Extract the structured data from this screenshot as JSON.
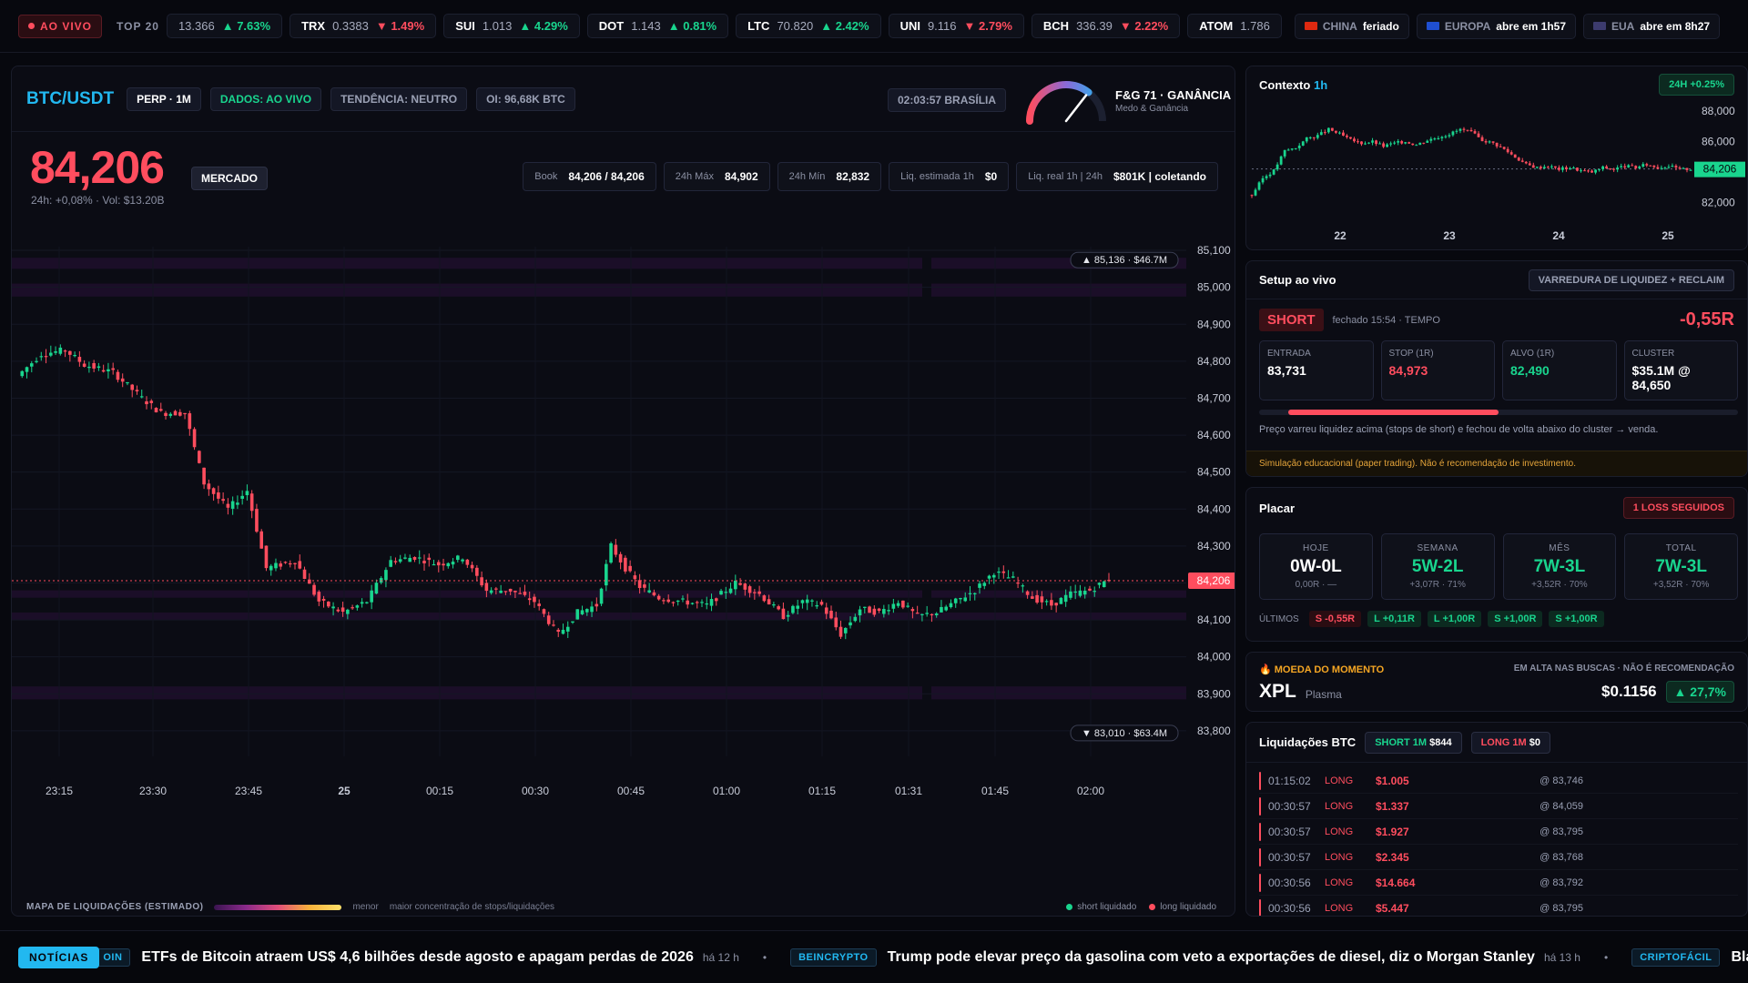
{
  "top": {
    "live": "AO VIVO",
    "top20": "TOP 20",
    "tickers": [
      {
        "s": "",
        "p": "13.366",
        "c": "7.63%",
        "d": "up"
      },
      {
        "s": "TRX",
        "p": "0.3383",
        "c": "1.49%",
        "d": "dn"
      },
      {
        "s": "SUI",
        "p": "1.013",
        "c": "4.29%",
        "d": "up"
      },
      {
        "s": "DOT",
        "p": "1.143",
        "c": "0.81%",
        "d": "up"
      },
      {
        "s": "LTC",
        "p": "70.820",
        "c": "2.42%",
        "d": "up"
      },
      {
        "s": "UNI",
        "p": "9.116",
        "c": "2.79%",
        "d": "dn"
      },
      {
        "s": "BCH",
        "p": "336.39",
        "c": "2.22%",
        "d": "dn"
      },
      {
        "s": "ATOM",
        "p": "1.786",
        "c": "",
        "d": ""
      }
    ],
    "markets": [
      {
        "region": "CHINA",
        "status": "feriado"
      },
      {
        "region": "EUROPA",
        "status": "abre em 1h57"
      },
      {
        "region": "EUA",
        "status": "abre em 8h27"
      }
    ]
  },
  "header": {
    "pair": "BTC/USDT",
    "perp": "PERP · 1M",
    "data": "DADOS: AO VIVO",
    "trend": "TENDÊNCIA: NEUTRO",
    "oi": "OI: 96,68K BTC",
    "clock": "02:03:57 BRASÍLIA",
    "fg_title": "F&G 71 · GANÂNCIA",
    "fg_sub": "Medo & Ganância",
    "fg_value": 71
  },
  "price": {
    "value": "84,206",
    "market_btn": "MERCADO",
    "sub": "24h: +0,08% · Vol: $13.20B"
  },
  "stats": [
    {
      "l": "Book",
      "v": "84,206 / 84,206"
    },
    {
      "l": "24h Máx",
      "v": "84,902"
    },
    {
      "l": "24h Mín",
      "v": "82,832"
    },
    {
      "l": "Liq. estimada 1h",
      "v": "$0"
    },
    {
      "l": "Liq. real 1h | 24h",
      "v": "$801K | coletando"
    }
  ],
  "chart_data": {
    "type": "candlestick",
    "y_ticks": [
      "85,100",
      "85,000",
      "84,900",
      "84,800",
      "84,700",
      "84,600",
      "84,500",
      "84,400",
      "84,300",
      "84,200",
      "84,100",
      "84,000",
      "83,900",
      "83,800"
    ],
    "x_ticks": [
      "23:15",
      "23:30",
      "23:45",
      "25",
      "00:15",
      "00:30",
      "00:45",
      "01:00",
      "01:15",
      "01:31",
      "01:45",
      "02:00"
    ],
    "ylim": [
      83780,
      85110
    ],
    "last_price": 84206,
    "last_label": "84,206",
    "top_marker": "85,136 · $46.7M",
    "bottom_marker": "83,010 · $63.4M",
    "close_path": [
      [
        0,
        84760
      ],
      [
        5,
        84820
      ],
      [
        10,
        84830
      ],
      [
        14,
        84790
      ],
      [
        20,
        84770
      ],
      [
        26,
        84700
      ],
      [
        30,
        84660
      ],
      [
        35,
        84660
      ],
      [
        39,
        84470
      ],
      [
        44,
        84400
      ],
      [
        48,
        84450
      ],
      [
        52,
        84240
      ],
      [
        58,
        84260
      ],
      [
        63,
        84150
      ],
      [
        68,
        84120
      ],
      [
        73,
        84150
      ],
      [
        78,
        84260
      ],
      [
        83,
        84270
      ],
      [
        88,
        84250
      ],
      [
        93,
        84270
      ],
      [
        98,
        84180
      ],
      [
        103,
        84180
      ],
      [
        108,
        84150
      ],
      [
        113,
        84060
      ],
      [
        117,
        84120
      ],
      [
        121,
        84140
      ],
      [
        124,
        84300
      ],
      [
        127,
        84240
      ],
      [
        130,
        84190
      ],
      [
        134,
        84160
      ],
      [
        139,
        84150
      ],
      [
        144,
        84140
      ],
      [
        150,
        84200
      ],
      [
        155,
        84170
      ],
      [
        160,
        84110
      ],
      [
        164,
        84150
      ],
      [
        168,
        84140
      ],
      [
        172,
        84060
      ],
      [
        176,
        84130
      ],
      [
        180,
        84120
      ],
      [
        184,
        84150
      ],
      [
        188,
        84110
      ],
      [
        192,
        84120
      ],
      [
        196,
        84150
      ],
      [
        200,
        84180
      ],
      [
        204,
        84230
      ],
      [
        208,
        84210
      ],
      [
        212,
        84160
      ],
      [
        216,
        84140
      ],
      [
        220,
        84170
      ],
      [
        224,
        84180
      ],
      [
        228,
        84210
      ]
    ]
  },
  "map": {
    "label": "MAPA DE LIQUIDAÇÕES (ESTIMADO)",
    "low": "menor",
    "high": "maior concentração de stops/liquidações",
    "short_liq": "short liquidado",
    "long_liq": "long liquidado"
  },
  "context": {
    "title": "Contexto",
    "tf": "1h",
    "pill": "24H +0.25%",
    "y_ticks": [
      "88,000",
      "86,000",
      "84,206",
      "82,000"
    ],
    "x_ticks": [
      "22",
      "23",
      "24",
      "25"
    ],
    "series": [
      [
        0,
        82500
      ],
      [
        2,
        83600
      ],
      [
        4,
        84100
      ],
      [
        6,
        85400
      ],
      [
        8,
        85600
      ],
      [
        10,
        86200
      ],
      [
        12,
        86400
      ],
      [
        14,
        86800
      ],
      [
        16,
        86500
      ],
      [
        18,
        86100
      ],
      [
        20,
        85900
      ],
      [
        22,
        86000
      ],
      [
        24,
        85700
      ],
      [
        26,
        85900
      ],
      [
        28,
        86000
      ],
      [
        30,
        85800
      ],
      [
        32,
        86100
      ],
      [
        34,
        86300
      ],
      [
        36,
        86500
      ],
      [
        38,
        86800
      ],
      [
        40,
        86600
      ],
      [
        42,
        86100
      ],
      [
        44,
        85900
      ],
      [
        46,
        85500
      ],
      [
        48,
        85000
      ],
      [
        50,
        84500
      ],
      [
        52,
        84300
      ],
      [
        54,
        84400
      ],
      [
        56,
        84200
      ],
      [
        58,
        84300
      ],
      [
        60,
        84100
      ],
      [
        62,
        84000
      ],
      [
        64,
        84300
      ],
      [
        66,
        84200
      ],
      [
        68,
        84400
      ],
      [
        70,
        84300
      ],
      [
        72,
        84500
      ],
      [
        74,
        84300
      ],
      [
        76,
        84400
      ],
      [
        78,
        84200
      ],
      [
        80,
        84206
      ]
    ]
  },
  "setup": {
    "title": "Setup ao vivo",
    "pill": "VARREDURA DE LIQUIDEZ + RECLAIM",
    "side": "SHORT",
    "closed": "fechado 15:54 · TEMPO",
    "result": "-0,55R",
    "boxes": [
      {
        "l": "ENTRADA",
        "v": "83,731"
      },
      {
        "l": "STOP (1R)",
        "v": "84,973"
      },
      {
        "l": "ALVO (1R)",
        "v": "82,490"
      },
      {
        "l": "CLUSTER",
        "v": "$35.1M @ 84,650"
      }
    ],
    "desc": "Preço varreu liquidez acima (stops de short) e fechou de volta abaixo do cluster → venda.",
    "warn": "Simulação educacional (paper trading). Não é recomendação de investimento.",
    "progress": 0.55
  },
  "score": {
    "title": "Placar",
    "pill": "1 LOSS SEGUIDOS",
    "boxes": [
      {
        "l": "HOJE",
        "v": "0W-0L",
        "s": "0,00R · —"
      },
      {
        "l": "SEMANA",
        "v": "5W-2L",
        "s": "+3,07R · 71%"
      },
      {
        "l": "MÊS",
        "v": "7W-3L",
        "s": "+3,52R · 70%"
      },
      {
        "l": "TOTAL",
        "v": "7W-3L",
        "s": "+3,52R · 70%"
      }
    ],
    "recent_label": "ÚLTIMOS",
    "recent": [
      {
        "t": "S -0,55R",
        "c": "r"
      },
      {
        "t": "L +0,11R",
        "c": "g"
      },
      {
        "t": "L +1,00R",
        "c": "g"
      },
      {
        "t": "S +1,00R",
        "c": "g"
      },
      {
        "t": "S +1,00R",
        "c": "g"
      }
    ]
  },
  "coin": {
    "label": "MOEDA DO MOMENTO",
    "note": "EM ALTA NAS BUSCAS · NÃO É RECOMENDAÇÃO",
    "sym": "XPL",
    "name": "Plasma",
    "price": "$0.1156",
    "chg": "27,7%"
  },
  "liq": {
    "title": "Liquidações BTC",
    "short_l": "SHORT 1M",
    "short_v": "$844",
    "long_l": "LONG 1M",
    "long_v": "$0",
    "rows": [
      {
        "t": "01:15:02",
        "s": "LONG",
        "v": "$1.005",
        "p": "@ 83,746"
      },
      {
        "t": "00:30:57",
        "s": "LONG",
        "v": "$1.337",
        "p": "@ 84,059"
      },
      {
        "t": "00:30:57",
        "s": "LONG",
        "v": "$1.927",
        "p": "@ 83,795"
      },
      {
        "t": "00:30:57",
        "s": "LONG",
        "v": "$2.345",
        "p": "@ 83,768"
      },
      {
        "t": "00:30:56",
        "s": "LONG",
        "v": "$14.664",
        "p": "@ 83,792"
      },
      {
        "t": "00:30:56",
        "s": "LONG",
        "v": "$5.447",
        "p": "@ 83,795"
      }
    ]
  },
  "news": {
    "label": "NOTÍCIAS",
    "items": [
      {
        "src": "OIN",
        "h": "ETFs de Bitcoin atraem US$ 4,6 bilhões desde agosto e apagam perdas de 2026",
        "a": "há 12 h"
      },
      {
        "src": "BEINCRYPTO",
        "h": "Trump pode elevar preço da gasolina com veto a exportações de diesel, diz o Morgan Stanley",
        "a": "há 13 h"
      },
      {
        "src": "CRIPTOFÁCIL",
        "h": "BlackRock lid",
        "a": ""
      }
    ]
  }
}
